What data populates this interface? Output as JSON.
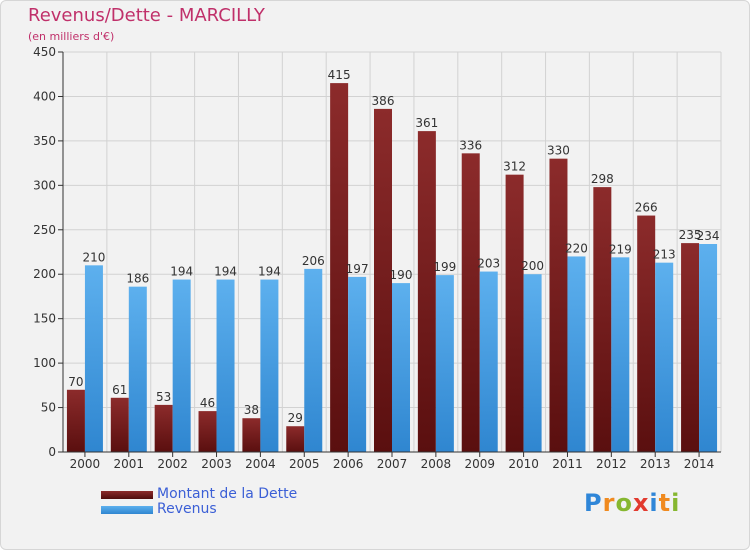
{
  "title": "Revenus/Dette - MARCILLY",
  "subtitle": "(en milliers d'€)",
  "logo_letters": [
    {
      "ch": "P",
      "color": "#2f86d8"
    },
    {
      "ch": "r",
      "color": "#f08a1f"
    },
    {
      "ch": "o",
      "color": "#86b730"
    },
    {
      "ch": "x",
      "color": "#e23a2e"
    },
    {
      "ch": "i",
      "color": "#2f86d8"
    },
    {
      "ch": "t",
      "color": "#f08a1f"
    },
    {
      "ch": "i",
      "color": "#86b730"
    }
  ],
  "chart_data": {
    "type": "bar",
    "categories": [
      "2000",
      "2001",
      "2002",
      "2003",
      "2004",
      "2005",
      "2006",
      "2007",
      "2008",
      "2009",
      "2010",
      "2011",
      "2012",
      "2013",
      "2014"
    ],
    "series": [
      {
        "name": "Montant de la Dette",
        "color": "#7a1f1f",
        "values": [
          70,
          61,
          53,
          46,
          38,
          29,
          415,
          386,
          361,
          336,
          312,
          330,
          298,
          266,
          235
        ]
      },
      {
        "name": "Revenus",
        "color": "#4da3e8",
        "values": [
          210,
          186,
          194,
          194,
          194,
          206,
          197,
          190,
          199,
          203,
          200,
          220,
          219,
          213,
          234
        ]
      }
    ],
    "ylim": [
      0,
      450
    ],
    "yticks": [
      0,
      50,
      100,
      150,
      200,
      250,
      300,
      350,
      400,
      450
    ],
    "grid": true,
    "legend_position": "bottom-left"
  }
}
